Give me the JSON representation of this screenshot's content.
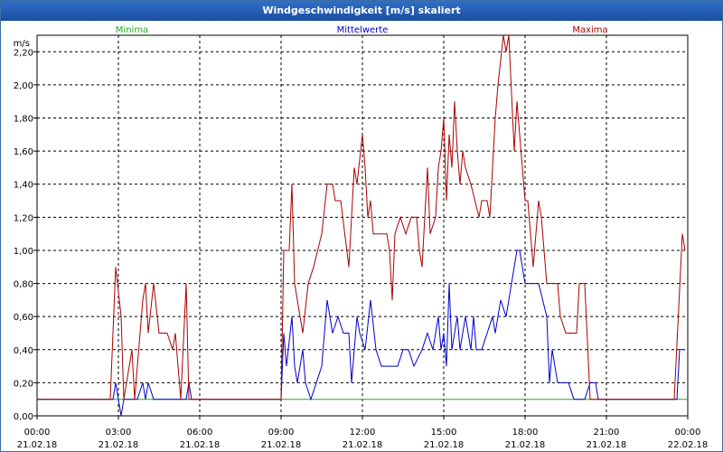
{
  "window": {
    "title": "Windgeschwindigkeit [m/s] skaliert"
  },
  "chart_data": {
    "type": "line",
    "title": "Windgeschwindigkeit [m/s] skaliert",
    "ylabel": "m/s",
    "ylim": [
      0,
      2.3
    ],
    "xlim_hours": [
      0,
      24
    ],
    "y_ticks": [
      "0,00",
      "0,20",
      "0,40",
      "0,60",
      "0,80",
      "1,00",
      "1,20",
      "1,40",
      "1,60",
      "1,80",
      "2,00",
      "2,20"
    ],
    "x_ticks": [
      {
        "time": "00:00",
        "date": "21.02.18"
      },
      {
        "time": "03:00",
        "date": "21.02.18"
      },
      {
        "time": "06:00",
        "date": "21.02.18"
      },
      {
        "time": "09:00",
        "date": "21.02.18"
      },
      {
        "time": "12:00",
        "date": "21.02.18"
      },
      {
        "time": "15:00",
        "date": "21.02.18"
      },
      {
        "time": "18:00",
        "date": "21.02.18"
      },
      {
        "time": "21:00",
        "date": "21.02.18"
      },
      {
        "time": "00:00",
        "date": "22.02.18"
      }
    ],
    "grid": true,
    "series": [
      {
        "name": "Minima",
        "color": "#22aa22",
        "points": [
          [
            0,
            0.1
          ],
          [
            24,
            0.1
          ]
        ]
      },
      {
        "name": "Mittelwerte",
        "color": "#0000cc",
        "points": [
          [
            0,
            0.1
          ],
          [
            2.8,
            0.1
          ],
          [
            2.9,
            0.2
          ],
          [
            3.0,
            0.1
          ],
          [
            3.1,
            0.0
          ],
          [
            3.2,
            0.1
          ],
          [
            3.7,
            0.1
          ],
          [
            3.9,
            0.2
          ],
          [
            4.0,
            0.1
          ],
          [
            4.1,
            0.2
          ],
          [
            4.3,
            0.1
          ],
          [
            5.5,
            0.1
          ],
          [
            5.6,
            0.2
          ],
          [
            5.7,
            0.1
          ],
          [
            5.8,
            0.1
          ],
          [
            9.0,
            0.1
          ],
          [
            9.1,
            0.5
          ],
          [
            9.2,
            0.3
          ],
          [
            9.4,
            0.6
          ],
          [
            9.5,
            0.3
          ],
          [
            9.6,
            0.2
          ],
          [
            9.8,
            0.4
          ],
          [
            9.9,
            0.2
          ],
          [
            10.1,
            0.1
          ],
          [
            10.5,
            0.3
          ],
          [
            10.7,
            0.7
          ],
          [
            10.9,
            0.5
          ],
          [
            11.1,
            0.6
          ],
          [
            11.3,
            0.5
          ],
          [
            11.5,
            0.5
          ],
          [
            11.6,
            0.2
          ],
          [
            11.7,
            0.4
          ],
          [
            11.8,
            0.6
          ],
          [
            11.9,
            0.5
          ],
          [
            12.1,
            0.4
          ],
          [
            12.3,
            0.7
          ],
          [
            12.5,
            0.4
          ],
          [
            12.7,
            0.3
          ],
          [
            13.3,
            0.3
          ],
          [
            13.5,
            0.4
          ],
          [
            13.7,
            0.4
          ],
          [
            13.9,
            0.3
          ],
          [
            14.2,
            0.4
          ],
          [
            14.4,
            0.5
          ],
          [
            14.6,
            0.4
          ],
          [
            14.8,
            0.6
          ],
          [
            14.9,
            0.4
          ],
          [
            15.0,
            0.5
          ],
          [
            15.1,
            0.3
          ],
          [
            15.2,
            0.8
          ],
          [
            15.3,
            0.4
          ],
          [
            15.5,
            0.6
          ],
          [
            15.6,
            0.4
          ],
          [
            15.8,
            0.6
          ],
          [
            15.9,
            0.5
          ],
          [
            16.0,
            0.4
          ],
          [
            16.1,
            0.6
          ],
          [
            16.2,
            0.4
          ],
          [
            16.4,
            0.4
          ],
          [
            16.6,
            0.5
          ],
          [
            16.8,
            0.6
          ],
          [
            16.9,
            0.5
          ],
          [
            17.1,
            0.7
          ],
          [
            17.3,
            0.6
          ],
          [
            17.5,
            0.8
          ],
          [
            17.7,
            1.0
          ],
          [
            17.8,
            1.0
          ],
          [
            18.0,
            0.8
          ],
          [
            18.5,
            0.8
          ],
          [
            18.8,
            0.6
          ],
          [
            18.9,
            0.2
          ],
          [
            19.0,
            0.4
          ],
          [
            19.2,
            0.2
          ],
          [
            19.6,
            0.2
          ],
          [
            19.8,
            0.1
          ],
          [
            20.2,
            0.1
          ],
          [
            20.4,
            0.2
          ],
          [
            20.6,
            0.2
          ],
          [
            20.7,
            0.1
          ],
          [
            23.6,
            0.1
          ],
          [
            23.7,
            0.4
          ],
          [
            23.9,
            0.4
          ]
        ]
      },
      {
        "name": "Maxima",
        "color": "#aa0000",
        "points": [
          [
            0,
            0.1
          ],
          [
            2.7,
            0.1
          ],
          [
            2.9,
            0.9
          ],
          [
            3.1,
            0.6
          ],
          [
            3.2,
            0.1
          ],
          [
            3.5,
            0.4
          ],
          [
            3.6,
            0.1
          ],
          [
            3.9,
            0.7
          ],
          [
            4.0,
            0.8
          ],
          [
            4.1,
            0.5
          ],
          [
            4.3,
            0.8
          ],
          [
            4.5,
            0.5
          ],
          [
            4.8,
            0.5
          ],
          [
            5.0,
            0.4
          ],
          [
            5.1,
            0.5
          ],
          [
            5.3,
            0.1
          ],
          [
            5.5,
            0.8
          ],
          [
            5.6,
            0.1
          ],
          [
            5.7,
            0.1
          ],
          [
            9.0,
            0.1
          ],
          [
            9.1,
            1.0
          ],
          [
            9.3,
            1.0
          ],
          [
            9.4,
            1.4
          ],
          [
            9.5,
            0.8
          ],
          [
            9.7,
            0.6
          ],
          [
            9.8,
            0.5
          ],
          [
            10.0,
            0.8
          ],
          [
            10.2,
            0.9
          ],
          [
            10.5,
            1.1
          ],
          [
            10.7,
            1.4
          ],
          [
            10.9,
            1.4
          ],
          [
            11.0,
            1.3
          ],
          [
            11.2,
            1.3
          ],
          [
            11.5,
            0.9
          ],
          [
            11.7,
            1.5
          ],
          [
            11.8,
            1.4
          ],
          [
            12.0,
            1.7
          ],
          [
            12.1,
            1.5
          ],
          [
            12.2,
            1.2
          ],
          [
            12.3,
            1.3
          ],
          [
            12.4,
            1.1
          ],
          [
            12.9,
            1.1
          ],
          [
            13.0,
            1.0
          ],
          [
            13.1,
            0.7
          ],
          [
            13.2,
            1.1
          ],
          [
            13.4,
            1.2
          ],
          [
            13.6,
            1.1
          ],
          [
            13.8,
            1.2
          ],
          [
            14.0,
            1.2
          ],
          [
            14.1,
            1.0
          ],
          [
            14.2,
            0.9
          ],
          [
            14.4,
            1.5
          ],
          [
            14.5,
            1.1
          ],
          [
            14.7,
            1.2
          ],
          [
            14.8,
            1.5
          ],
          [
            14.9,
            1.6
          ],
          [
            15.0,
            1.8
          ],
          [
            15.1,
            1.3
          ],
          [
            15.2,
            1.7
          ],
          [
            15.3,
            1.5
          ],
          [
            15.4,
            1.9
          ],
          [
            15.5,
            1.6
          ],
          [
            15.6,
            1.4
          ],
          [
            15.7,
            1.6
          ],
          [
            15.8,
            1.5
          ],
          [
            16.0,
            1.4
          ],
          [
            16.3,
            1.2
          ],
          [
            16.4,
            1.3
          ],
          [
            16.6,
            1.3
          ],
          [
            16.7,
            1.2
          ],
          [
            16.9,
            1.8
          ],
          [
            17.0,
            2.0
          ],
          [
            17.2,
            2.3
          ],
          [
            17.3,
            2.2
          ],
          [
            17.4,
            2.3
          ],
          [
            17.6,
            1.6
          ],
          [
            17.7,
            1.9
          ],
          [
            17.8,
            1.7
          ],
          [
            18.0,
            1.3
          ],
          [
            18.1,
            1.3
          ],
          [
            18.3,
            0.9
          ],
          [
            18.5,
            1.3
          ],
          [
            18.6,
            1.2
          ],
          [
            18.8,
            0.8
          ],
          [
            19.2,
            0.8
          ],
          [
            19.3,
            0.6
          ],
          [
            19.5,
            0.5
          ],
          [
            19.9,
            0.5
          ],
          [
            20.0,
            0.8
          ],
          [
            20.2,
            0.8
          ],
          [
            20.4,
            0.1
          ],
          [
            23.5,
            0.1
          ],
          [
            23.8,
            1.1
          ],
          [
            23.9,
            1.0
          ]
        ]
      }
    ]
  }
}
